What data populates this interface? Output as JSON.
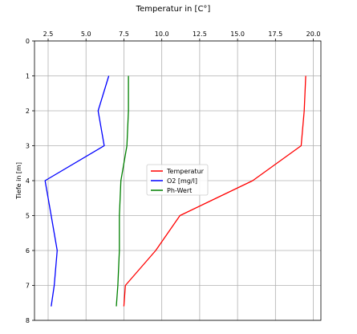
{
  "chart_data": {
    "type": "line",
    "title": "Temperatur in [C°]",
    "xlabel": "",
    "ylabel": "Tiefe in [m]",
    "xlim": [
      1.6,
      20.5
    ],
    "ylim": [
      8,
      0
    ],
    "x_ticks": [
      "2.5",
      "5.0",
      "7.5",
      "10.0",
      "12.5",
      "15.0",
      "17.5",
      "20.0"
    ],
    "y_ticks": [
      "0",
      "1",
      "2",
      "3",
      "4",
      "5",
      "6",
      "7",
      "8"
    ],
    "grid": true,
    "x_axis_position": "top",
    "legend_position": "center",
    "series": [
      {
        "name": "Temperatur",
        "color": "#ff0000",
        "points": [
          [
            19.5,
            1
          ],
          [
            19.4,
            2
          ],
          [
            19.2,
            3
          ],
          [
            16.0,
            4
          ],
          [
            11.2,
            5
          ],
          [
            9.6,
            6
          ],
          [
            7.6,
            7
          ],
          [
            7.5,
            7.6
          ]
        ]
      },
      {
        "name": "O2 [mg/l]",
        "color": "#0000ff",
        "points": [
          [
            6.5,
            1
          ],
          [
            5.8,
            2
          ],
          [
            6.2,
            3
          ],
          [
            2.3,
            4
          ],
          [
            2.7,
            5
          ],
          [
            3.1,
            6
          ],
          [
            2.9,
            7
          ],
          [
            2.7,
            7.6
          ]
        ]
      },
      {
        "name": "Ph-Wert",
        "color": "#008000",
        "points": [
          [
            7.8,
            1
          ],
          [
            7.8,
            2
          ],
          [
            7.7,
            3
          ],
          [
            7.3,
            4
          ],
          [
            7.2,
            5
          ],
          [
            7.2,
            6
          ],
          [
            7.1,
            7
          ],
          [
            7.0,
            7.6
          ]
        ]
      }
    ]
  }
}
